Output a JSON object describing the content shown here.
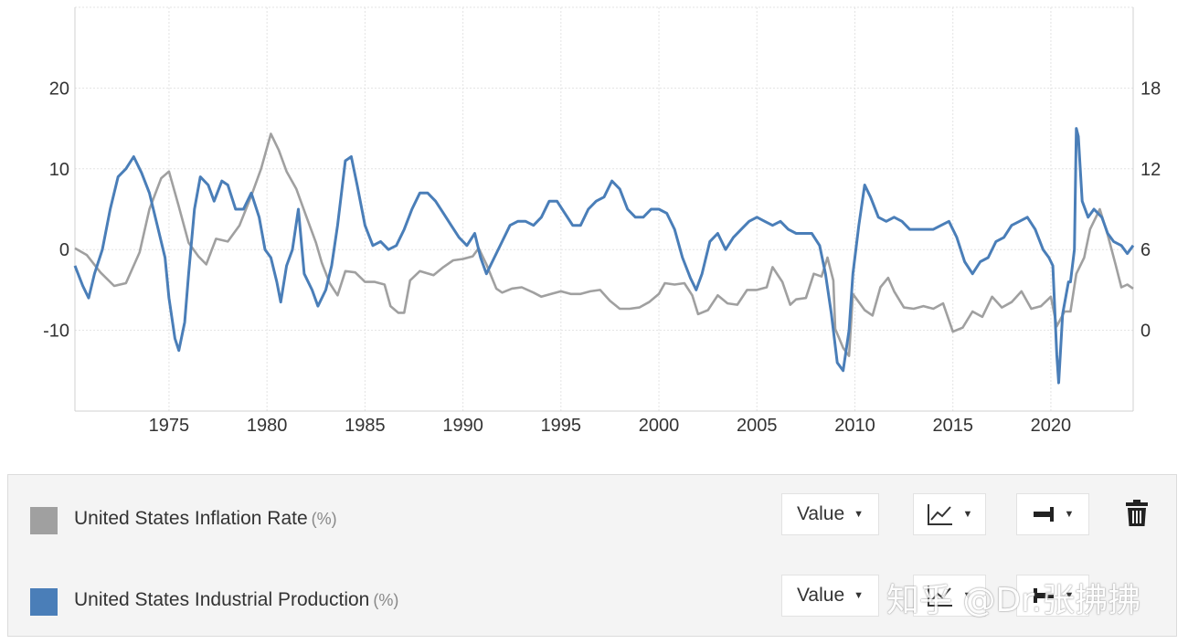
{
  "chart_data": {
    "type": "line",
    "x_axis": {
      "min": 1970.2,
      "max": 2024.2,
      "ticks": [
        1975,
        1980,
        1985,
        1990,
        1995,
        2000,
        2005,
        2010,
        2015,
        2020
      ]
    },
    "left_axis": {
      "min": -20,
      "max": 30,
      "ticks": [
        20,
        10,
        0,
        -10
      ]
    },
    "right_axis": {
      "min": -6,
      "max": 24,
      "ticks": [
        18,
        12,
        6,
        0
      ]
    },
    "grid": true,
    "series": [
      {
        "name": "United States Inflation Rate",
        "unit": "(%)",
        "axis": "right",
        "color": "#a0a0a0",
        "points": [
          [
            1970.2,
            6.1
          ],
          [
            1970.8,
            5.6
          ],
          [
            1971.5,
            4.3
          ],
          [
            1972.2,
            3.3
          ],
          [
            1972.8,
            3.5
          ],
          [
            1973.5,
            5.8
          ],
          [
            1974.0,
            9.0
          ],
          [
            1974.6,
            11.3
          ],
          [
            1975.0,
            11.8
          ],
          [
            1975.5,
            9.2
          ],
          [
            1976.0,
            6.5
          ],
          [
            1976.5,
            5.5
          ],
          [
            1976.9,
            4.9
          ],
          [
            1977.4,
            6.8
          ],
          [
            1978.0,
            6.6
          ],
          [
            1978.6,
            7.8
          ],
          [
            1979.2,
            10.0
          ],
          [
            1979.7,
            12.0
          ],
          [
            1980.2,
            14.6
          ],
          [
            1980.6,
            13.4
          ],
          [
            1981.0,
            11.8
          ],
          [
            1981.5,
            10.5
          ],
          [
            1982.0,
            8.5
          ],
          [
            1982.5,
            6.5
          ],
          [
            1982.8,
            5.0
          ],
          [
            1983.2,
            3.5
          ],
          [
            1983.6,
            2.6
          ],
          [
            1984.0,
            4.4
          ],
          [
            1984.5,
            4.3
          ],
          [
            1985.0,
            3.6
          ],
          [
            1985.5,
            3.6
          ],
          [
            1986.0,
            3.4
          ],
          [
            1986.3,
            1.8
          ],
          [
            1986.7,
            1.3
          ],
          [
            1987.0,
            1.3
          ],
          [
            1987.3,
            3.7
          ],
          [
            1987.8,
            4.4
          ],
          [
            1988.5,
            4.1
          ],
          [
            1989.0,
            4.7
          ],
          [
            1989.5,
            5.2
          ],
          [
            1990.0,
            5.3
          ],
          [
            1990.5,
            5.5
          ],
          [
            1990.8,
            6.1
          ],
          [
            1991.2,
            4.9
          ],
          [
            1991.7,
            3.1
          ],
          [
            1992.0,
            2.8
          ],
          [
            1992.5,
            3.1
          ],
          [
            1993.0,
            3.2
          ],
          [
            1993.6,
            2.8
          ],
          [
            1994.0,
            2.5
          ],
          [
            1994.5,
            2.7
          ],
          [
            1995.0,
            2.9
          ],
          [
            1995.5,
            2.7
          ],
          [
            1996.0,
            2.7
          ],
          [
            1996.5,
            2.9
          ],
          [
            1997.0,
            3.0
          ],
          [
            1997.5,
            2.2
          ],
          [
            1998.0,
            1.6
          ],
          [
            1998.5,
            1.6
          ],
          [
            1999.0,
            1.7
          ],
          [
            1999.5,
            2.1
          ],
          [
            2000.0,
            2.7
          ],
          [
            2000.3,
            3.5
          ],
          [
            2000.8,
            3.4
          ],
          [
            2001.3,
            3.5
          ],
          [
            2001.7,
            2.6
          ],
          [
            2002.0,
            1.2
          ],
          [
            2002.5,
            1.5
          ],
          [
            2003.0,
            2.6
          ],
          [
            2003.5,
            2.0
          ],
          [
            2004.0,
            1.9
          ],
          [
            2004.5,
            3.0
          ],
          [
            2005.0,
            3.0
          ],
          [
            2005.5,
            3.2
          ],
          [
            2005.8,
            4.7
          ],
          [
            2006.3,
            3.6
          ],
          [
            2006.7,
            1.9
          ],
          [
            2007.0,
            2.3
          ],
          [
            2007.5,
            2.4
          ],
          [
            2007.9,
            4.2
          ],
          [
            2008.3,
            4.0
          ],
          [
            2008.6,
            5.4
          ],
          [
            2008.9,
            3.7
          ],
          [
            2009.0,
            0.1
          ],
          [
            2009.4,
            -1.3
          ],
          [
            2009.7,
            -1.9
          ],
          [
            2009.9,
            2.7
          ],
          [
            2010.5,
            1.5
          ],
          [
            2010.9,
            1.1
          ],
          [
            2011.3,
            3.2
          ],
          [
            2011.7,
            3.9
          ],
          [
            2012.0,
            2.9
          ],
          [
            2012.5,
            1.7
          ],
          [
            2013.0,
            1.6
          ],
          [
            2013.5,
            1.8
          ],
          [
            2014.0,
            1.6
          ],
          [
            2014.5,
            2.0
          ],
          [
            2015.0,
            -0.1
          ],
          [
            2015.5,
            0.2
          ],
          [
            2016.0,
            1.4
          ],
          [
            2016.5,
            1.0
          ],
          [
            2017.0,
            2.5
          ],
          [
            2017.5,
            1.7
          ],
          [
            2018.0,
            2.1
          ],
          [
            2018.5,
            2.9
          ],
          [
            2019.0,
            1.6
          ],
          [
            2019.5,
            1.8
          ],
          [
            2020.0,
            2.5
          ],
          [
            2020.3,
            0.3
          ],
          [
            2020.7,
            1.4
          ],
          [
            2021.0,
            1.4
          ],
          [
            2021.3,
            4.2
          ],
          [
            2021.7,
            5.4
          ],
          [
            2022.0,
            7.5
          ],
          [
            2022.5,
            9.0
          ],
          [
            2022.9,
            7.1
          ],
          [
            2023.3,
            4.9
          ],
          [
            2023.6,
            3.2
          ],
          [
            2023.9,
            3.4
          ],
          [
            2024.2,
            3.1
          ]
        ]
      },
      {
        "name": "United States Industrial Production",
        "unit": "(%)",
        "axis": "left",
        "color": "#4a7eb8",
        "points": [
          [
            1970.2,
            -2.0
          ],
          [
            1970.6,
            -4.5
          ],
          [
            1970.9,
            -6.0
          ],
          [
            1971.2,
            -3.0
          ],
          [
            1971.6,
            0.0
          ],
          [
            1972.0,
            5.0
          ],
          [
            1972.4,
            9.0
          ],
          [
            1972.8,
            10.0
          ],
          [
            1973.2,
            11.5
          ],
          [
            1973.6,
            9.5
          ],
          [
            1974.0,
            7.0
          ],
          [
            1974.4,
            3.0
          ],
          [
            1974.8,
            -1.0
          ],
          [
            1975.0,
            -6.0
          ],
          [
            1975.3,
            -11.0
          ],
          [
            1975.5,
            -12.5
          ],
          [
            1975.8,
            -9.0
          ],
          [
            1976.0,
            -3.0
          ],
          [
            1976.3,
            5.0
          ],
          [
            1976.6,
            9.0
          ],
          [
            1977.0,
            8.0
          ],
          [
            1977.3,
            6.0
          ],
          [
            1977.7,
            8.5
          ],
          [
            1978.0,
            8.0
          ],
          [
            1978.4,
            5.0
          ],
          [
            1978.8,
            5.0
          ],
          [
            1979.2,
            7.0
          ],
          [
            1979.6,
            4.0
          ],
          [
            1979.9,
            0.0
          ],
          [
            1980.2,
            -1.0
          ],
          [
            1980.5,
            -4.0
          ],
          [
            1980.7,
            -6.5
          ],
          [
            1981.0,
            -2.0
          ],
          [
            1981.3,
            0.0
          ],
          [
            1981.6,
            5.0
          ],
          [
            1981.9,
            -3.0
          ],
          [
            1982.3,
            -5.0
          ],
          [
            1982.6,
            -7.0
          ],
          [
            1983.0,
            -5.0
          ],
          [
            1983.3,
            -2.0
          ],
          [
            1983.6,
            3.0
          ],
          [
            1984.0,
            11.0
          ],
          [
            1984.3,
            11.5
          ],
          [
            1984.6,
            8.0
          ],
          [
            1985.0,
            3.0
          ],
          [
            1985.4,
            0.5
          ],
          [
            1985.8,
            1.0
          ],
          [
            1986.2,
            0.0
          ],
          [
            1986.6,
            0.5
          ],
          [
            1987.0,
            2.5
          ],
          [
            1987.4,
            5.0
          ],
          [
            1987.8,
            7.0
          ],
          [
            1988.2,
            7.0
          ],
          [
            1988.6,
            6.0
          ],
          [
            1989.0,
            4.5
          ],
          [
            1989.4,
            3.0
          ],
          [
            1989.8,
            1.5
          ],
          [
            1990.2,
            0.5
          ],
          [
            1990.6,
            2.0
          ],
          [
            1990.9,
            -1.0
          ],
          [
            1991.2,
            -3.0
          ],
          [
            1991.6,
            -1.0
          ],
          [
            1992.0,
            1.0
          ],
          [
            1992.4,
            3.0
          ],
          [
            1992.8,
            3.5
          ],
          [
            1993.2,
            3.5
          ],
          [
            1993.6,
            3.0
          ],
          [
            1994.0,
            4.0
          ],
          [
            1994.4,
            6.0
          ],
          [
            1994.8,
            6.0
          ],
          [
            1995.2,
            4.5
          ],
          [
            1995.6,
            3.0
          ],
          [
            1996.0,
            3.0
          ],
          [
            1996.4,
            5.0
          ],
          [
            1996.8,
            6.0
          ],
          [
            1997.2,
            6.5
          ],
          [
            1997.6,
            8.5
          ],
          [
            1998.0,
            7.5
          ],
          [
            1998.4,
            5.0
          ],
          [
            1998.8,
            4.0
          ],
          [
            1999.2,
            4.0
          ],
          [
            1999.6,
            5.0
          ],
          [
            2000.0,
            5.0
          ],
          [
            2000.4,
            4.5
          ],
          [
            2000.8,
            2.5
          ],
          [
            2001.2,
            -1.0
          ],
          [
            2001.6,
            -3.5
          ],
          [
            2001.9,
            -5.0
          ],
          [
            2002.2,
            -3.0
          ],
          [
            2002.6,
            1.0
          ],
          [
            2003.0,
            2.0
          ],
          [
            2003.4,
            0.0
          ],
          [
            2003.8,
            1.5
          ],
          [
            2004.2,
            2.5
          ],
          [
            2004.6,
            3.5
          ],
          [
            2005.0,
            4.0
          ],
          [
            2005.4,
            3.5
          ],
          [
            2005.8,
            3.0
          ],
          [
            2006.2,
            3.5
          ],
          [
            2006.6,
            2.5
          ],
          [
            2007.0,
            2.0
          ],
          [
            2007.4,
            2.0
          ],
          [
            2007.8,
            2.0
          ],
          [
            2008.2,
            0.5
          ],
          [
            2008.5,
            -3.0
          ],
          [
            2008.8,
            -8.0
          ],
          [
            2009.1,
            -14.0
          ],
          [
            2009.4,
            -15.0
          ],
          [
            2009.7,
            -10.0
          ],
          [
            2009.9,
            -3.0
          ],
          [
            2010.2,
            3.0
          ],
          [
            2010.5,
            8.0
          ],
          [
            2010.8,
            6.5
          ],
          [
            2011.2,
            4.0
          ],
          [
            2011.6,
            3.5
          ],
          [
            2012.0,
            4.0
          ],
          [
            2012.4,
            3.5
          ],
          [
            2012.8,
            2.5
          ],
          [
            2013.2,
            2.5
          ],
          [
            2013.6,
            2.5
          ],
          [
            2014.0,
            2.5
          ],
          [
            2014.4,
            3.0
          ],
          [
            2014.8,
            3.5
          ],
          [
            2015.2,
            1.5
          ],
          [
            2015.6,
            -1.5
          ],
          [
            2016.0,
            -3.0
          ],
          [
            2016.4,
            -1.5
          ],
          [
            2016.8,
            -1.0
          ],
          [
            2017.2,
            1.0
          ],
          [
            2017.6,
            1.5
          ],
          [
            2018.0,
            3.0
          ],
          [
            2018.4,
            3.5
          ],
          [
            2018.8,
            4.0
          ],
          [
            2019.2,
            2.5
          ],
          [
            2019.6,
            0.0
          ],
          [
            2019.9,
            -1.0
          ],
          [
            2020.1,
            -2.0
          ],
          [
            2020.3,
            -13.0
          ],
          [
            2020.4,
            -16.5
          ],
          [
            2020.6,
            -8.0
          ],
          [
            2020.9,
            -4.0
          ],
          [
            2021.0,
            -4.0
          ],
          [
            2021.2,
            0.0
          ],
          [
            2021.3,
            15.0
          ],
          [
            2021.4,
            14.0
          ],
          [
            2021.6,
            6.0
          ],
          [
            2021.9,
            4.0
          ],
          [
            2022.2,
            5.0
          ],
          [
            2022.6,
            4.0
          ],
          [
            2022.9,
            2.0
          ],
          [
            2023.2,
            1.0
          ],
          [
            2023.6,
            0.5
          ],
          [
            2023.9,
            -0.5
          ],
          [
            2024.2,
            0.5
          ]
        ]
      }
    ]
  },
  "legend_panel": {
    "rows": [
      {
        "label": "United States Inflation Rate",
        "unit": "(%)",
        "swatch_color": "#a0a0a0",
        "mode_label": "Value",
        "type_icon": "line-chart-icon",
        "axis_icon": "axis-right-icon",
        "delete_icon": "trash-icon"
      },
      {
        "label": "United States Industrial Production",
        "unit": "(%)",
        "swatch_color": "#4a7eb8",
        "mode_label": "Value",
        "type_icon": "line-chart-icon",
        "axis_icon": "axis-left-icon"
      }
    ]
  },
  "watermark": "知乎 @Dr.张拂拂"
}
